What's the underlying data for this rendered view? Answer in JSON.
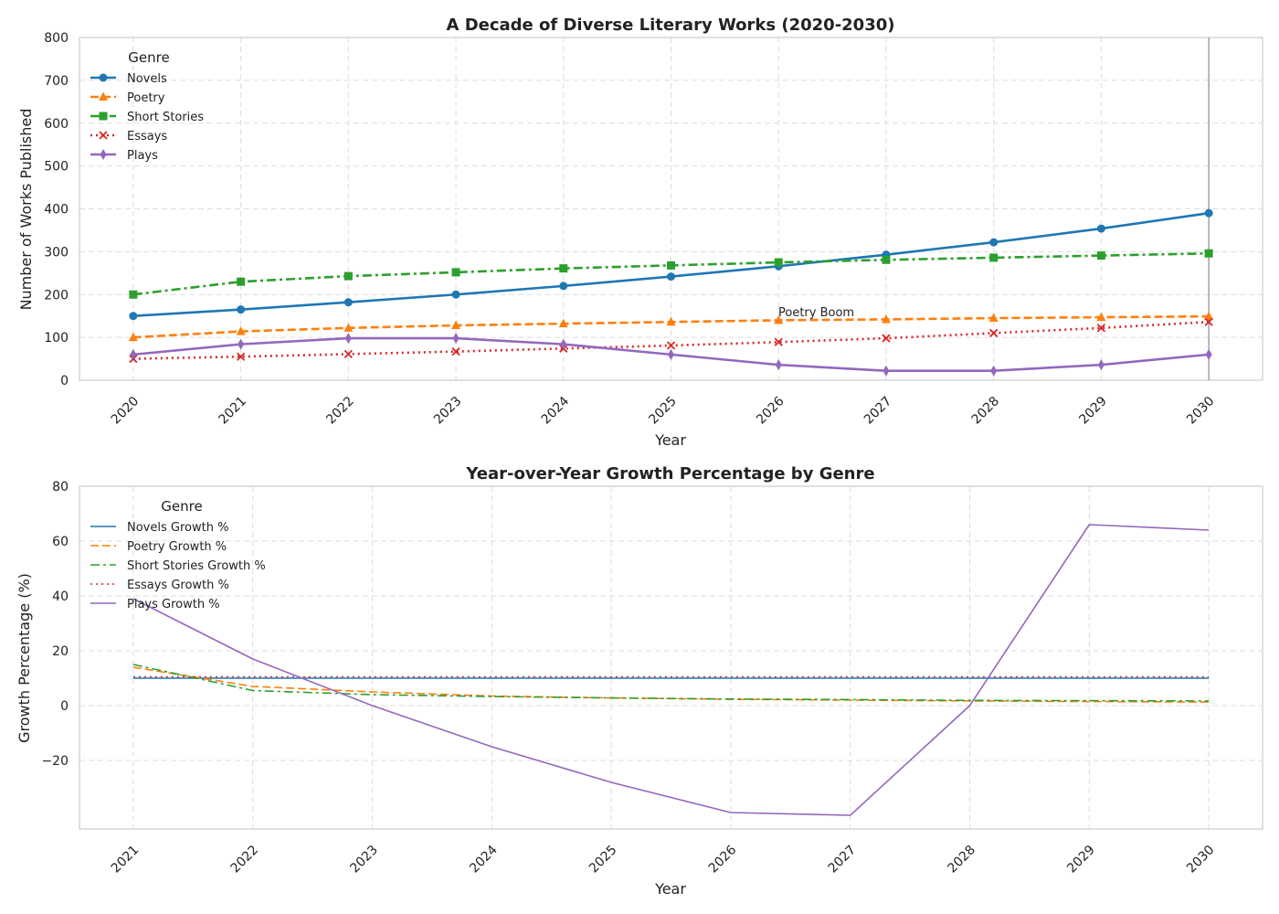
{
  "chart_data": [
    {
      "type": "line",
      "title": "A Decade of Diverse Literary Works (2020-2030)",
      "xlabel": "Year",
      "ylabel": "Number of Works Published",
      "x": [
        "2020",
        "2021",
        "2022",
        "2023",
        "2024",
        "2025",
        "2026",
        "2027",
        "2028",
        "2029",
        "2030"
      ],
      "xlim": [
        2019.5,
        2030.5
      ],
      "ylim": [
        0,
        800
      ],
      "yticks": [
        0,
        100,
        200,
        300,
        400,
        500,
        600,
        700,
        800
      ],
      "grid": true,
      "legend": {
        "title": "Genre",
        "placement": "top-left"
      },
      "series": [
        {
          "name": "Novels",
          "color": "#1f77b4",
          "marker": "circle",
          "dash": "solid",
          "values": [
            150,
            165,
            182,
            200,
            220,
            242,
            266,
            293,
            322,
            354,
            390
          ]
        },
        {
          "name": "Poetry",
          "color": "#ff7f0e",
          "marker": "triangle",
          "dash": "dashed",
          "values": [
            100,
            114,
            122,
            128,
            132,
            136,
            140,
            142,
            145,
            147,
            149
          ]
        },
        {
          "name": "Short Stories",
          "color": "#2ca02c",
          "marker": "square",
          "dash": "dashdot",
          "values": [
            200,
            230,
            243,
            252,
            261,
            268,
            275,
            281,
            286,
            291,
            296
          ]
        },
        {
          "name": "Essays",
          "color": "#d62728",
          "marker": "x",
          "dash": "dotted",
          "values": [
            50,
            55,
            61,
            67,
            74,
            81,
            89,
            98,
            110,
            122,
            136
          ]
        },
        {
          "name": "Plays",
          "color": "#9467bd",
          "marker": "diamond",
          "dash": "solid",
          "values": [
            60,
            84,
            98,
            98,
            84,
            60,
            36,
            22,
            22,
            36,
            60
          ]
        }
      ],
      "annotations": [
        {
          "text": "Poetry Boom",
          "x": 2026,
          "y": 140
        }
      ],
      "vline": {
        "x": 2030,
        "color": "#777777"
      }
    },
    {
      "type": "line",
      "title": "Year-over-Year Growth Percentage by Genre",
      "xlabel": "Year",
      "ylabel": "Growth Percentage (%)",
      "x": [
        "2021",
        "2022",
        "2023",
        "2024",
        "2025",
        "2026",
        "2027",
        "2028",
        "2029",
        "2030"
      ],
      "xlim": [
        2020.55,
        2030.45
      ],
      "ylim": [
        -45,
        80
      ],
      "yticks": [
        -20,
        0,
        20,
        40,
        60,
        80
      ],
      "grid": true,
      "legend": {
        "title": "Genre",
        "placement": "top-left"
      },
      "series": [
        {
          "name": "Novels Growth %",
          "color": "#1f77b4",
          "dash": "solid",
          "values": [
            10,
            10,
            10,
            10,
            10,
            10,
            10,
            10,
            10,
            10
          ]
        },
        {
          "name": "Poetry Growth %",
          "color": "#ff7f0e",
          "dash": "dashed",
          "values": [
            14,
            7,
            5,
            3.5,
            2.8,
            2.3,
            2,
            1.7,
            1.5,
            1.3
          ]
        },
        {
          "name": "Short Stories Growth %",
          "color": "#2ca02c",
          "dash": "dashdot",
          "values": [
            15,
            5.5,
            4,
            3.3,
            2.8,
            2.4,
            2.2,
            1.9,
            1.8,
            1.7
          ]
        },
        {
          "name": "Essays Growth %",
          "color": "#d62728",
          "dash": "dotted",
          "values": [
            10.5,
            10.5,
            10.5,
            10.5,
            10.5,
            10.5,
            10.5,
            10.5,
            10.5,
            10.5
          ]
        },
        {
          "name": "Plays Growth %",
          "color": "#9467bd",
          "dash": "solid",
          "values": [
            39,
            17,
            0,
            -15,
            -28,
            -39,
            -40,
            0,
            66,
            64
          ]
        }
      ]
    }
  ]
}
